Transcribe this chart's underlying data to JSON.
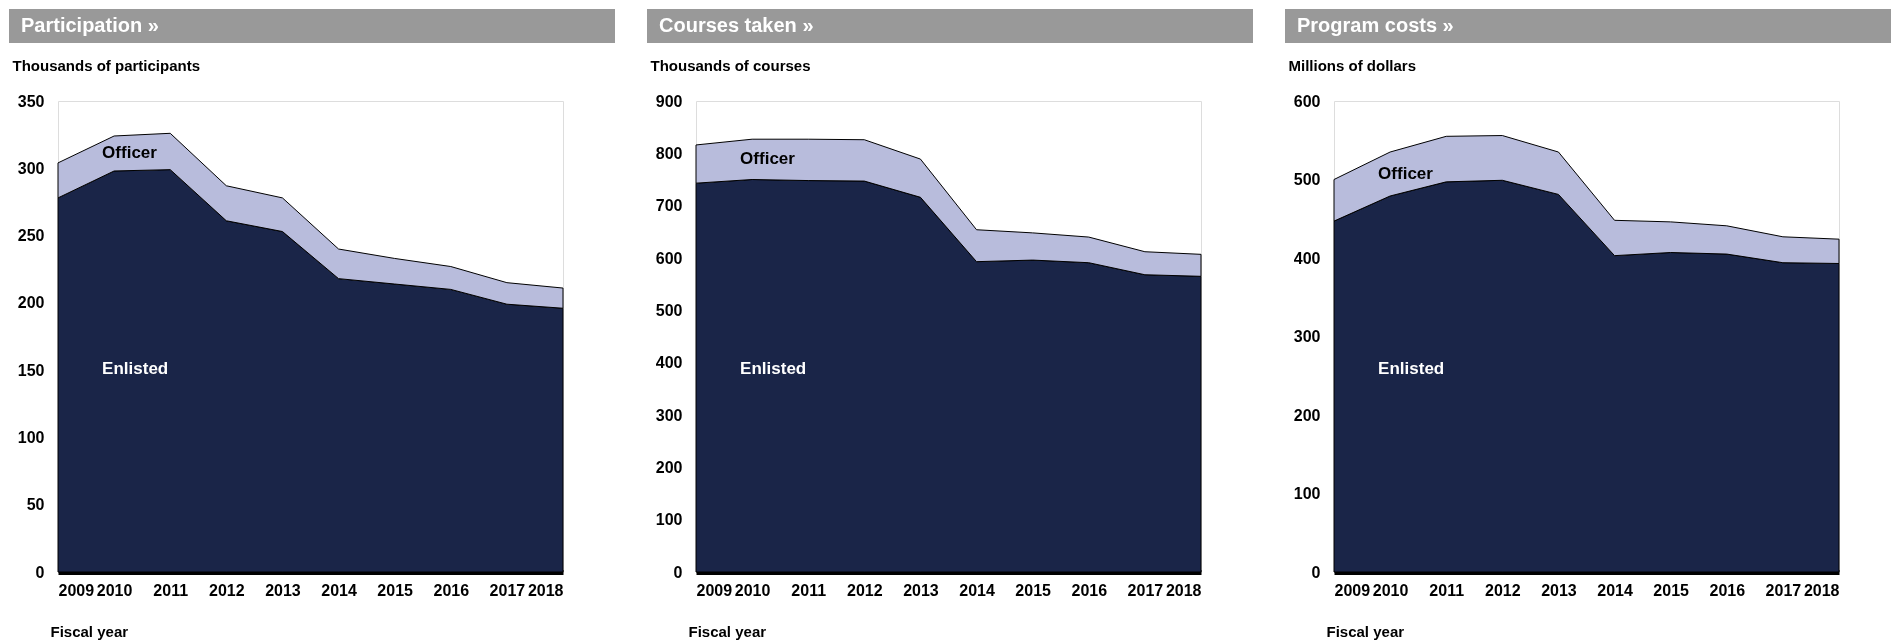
{
  "chart_data": [
    {
      "type": "area",
      "title": "Participation »",
      "ylabel": "Thousands of participants",
      "xlabel": "Fiscal year",
      "stacked": true,
      "grid": false,
      "x": [
        2009,
        2010,
        2011,
        2012,
        2013,
        2014,
        2015,
        2016,
        2017,
        2018
      ],
      "xlim": [
        2009,
        2018
      ],
      "xticks": [
        2009,
        2010,
        2011,
        2012,
        2013,
        2014,
        2015,
        2016,
        2017,
        2018
      ],
      "ylim": [
        0,
        350
      ],
      "yticks": [
        0,
        50,
        100,
        150,
        200,
        250,
        300,
        350
      ],
      "series": [
        {
          "name": "Enlisted",
          "color": "#1a2548",
          "values": [
            278,
            298,
            299,
            261,
            253,
            218,
            214,
            210,
            199,
            196
          ]
        },
        {
          "name": "Officer",
          "color": "#b8bcdc",
          "values": [
            26,
            26,
            27,
            26,
            25,
            22,
            19,
            17,
            16,
            15
          ]
        }
      ]
    },
    {
      "type": "area",
      "title": "Courses taken »",
      "ylabel": "Thousands of courses",
      "xlabel": "Fiscal year",
      "stacked": true,
      "grid": false,
      "x": [
        2009,
        2010,
        2011,
        2012,
        2013,
        2014,
        2015,
        2016,
        2017,
        2018
      ],
      "xlim": [
        2009,
        2018
      ],
      "xticks": [
        2009,
        2010,
        2011,
        2012,
        2013,
        2014,
        2015,
        2016,
        2017,
        2018
      ],
      "ylim": [
        0,
        900
      ],
      "yticks": [
        0,
        100,
        200,
        300,
        400,
        500,
        600,
        700,
        800,
        900
      ],
      "series": [
        {
          "name": "Enlisted",
          "color": "#1a2548",
          "values": [
            743,
            750,
            748,
            747,
            716,
            593,
            596,
            591,
            568,
            565
          ]
        },
        {
          "name": "Officer",
          "color": "#b8bcdc",
          "values": [
            73,
            77,
            79,
            79,
            73,
            61,
            52,
            49,
            44,
            42
          ]
        }
      ]
    },
    {
      "type": "area",
      "title": "Program costs »",
      "ylabel": "Millions of dollars",
      "xlabel": "Fiscal year",
      "stacked": true,
      "grid": false,
      "x": [
        2009,
        2010,
        2011,
        2012,
        2013,
        2014,
        2015,
        2016,
        2017,
        2018
      ],
      "xlim": [
        2009,
        2018
      ],
      "xticks": [
        2009,
        2010,
        2011,
        2012,
        2013,
        2014,
        2015,
        2016,
        2017,
        2018
      ],
      "ylim": [
        0,
        600
      ],
      "yticks": [
        0,
        100,
        200,
        300,
        400,
        500,
        600
      ],
      "series": [
        {
          "name": "Enlisted",
          "color": "#1a2548",
          "values": [
            447,
            479,
            497,
            499,
            481,
            403,
            407,
            405,
            394,
            393
          ]
        },
        {
          "name": "Officer",
          "color": "#b8bcdc",
          "values": [
            53,
            56,
            58,
            57,
            54,
            45,
            39,
            36,
            33,
            31
          ]
        }
      ]
    }
  ]
}
